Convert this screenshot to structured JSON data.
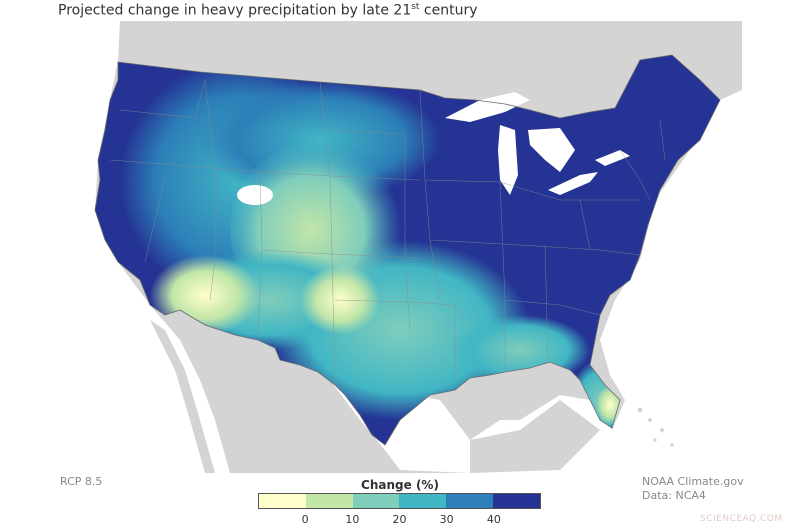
{
  "title": {
    "main": "Projected change in heavy precipitation by late 21",
    "superscript": "st",
    "suffix": " century"
  },
  "scenario": "RCP 8.5",
  "credits": {
    "source": "NOAA Climate.gov",
    "data": "Data: NCA4"
  },
  "legend": {
    "title": "Change (%)",
    "ticks": [
      "0",
      "10",
      "20",
      "30",
      "40"
    ],
    "colors": [
      "#ffffcc",
      "#c2e6a8",
      "#7fcdbb",
      "#41b6c4",
      "#2c7fb8",
      "#253494"
    ]
  },
  "watermark": "SCIENCEAQ.COM",
  "map_colors": {
    "land_other": "#d4d4d4",
    "water": "#ffffff",
    "borders": "#7a7a7a"
  }
}
